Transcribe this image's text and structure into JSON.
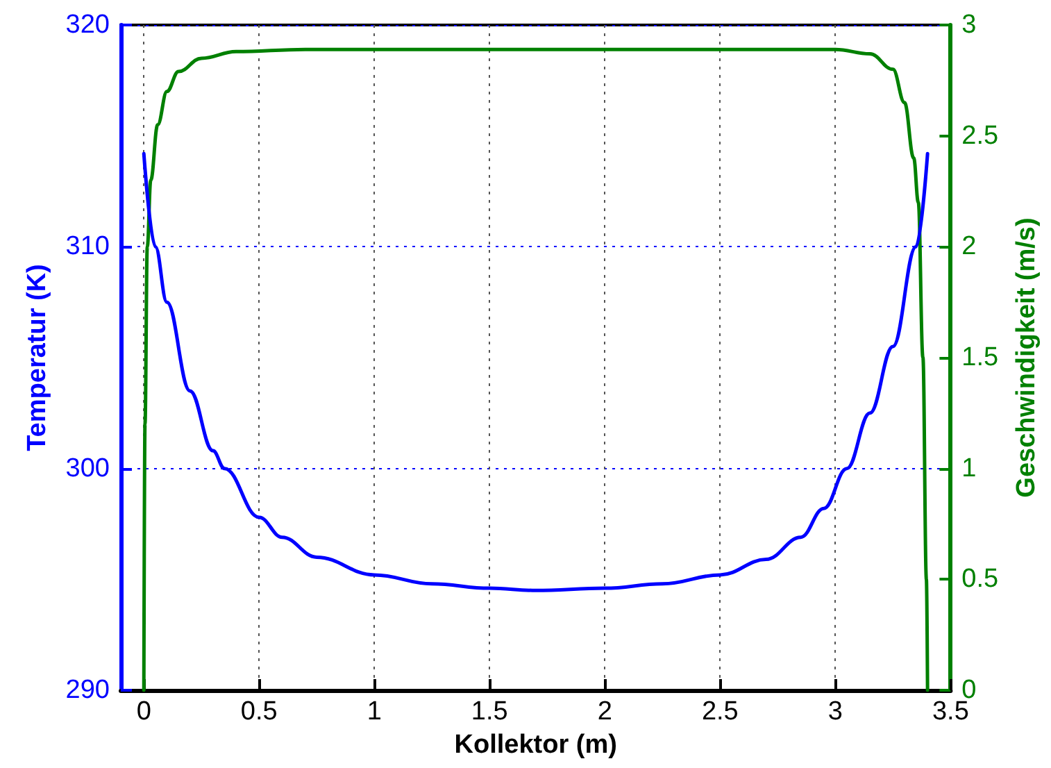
{
  "chart_data": {
    "type": "line",
    "xlabel": "Kollektor (m)",
    "ylabel": "Temperatur (K)",
    "y2label": "Geschwindigkeit (m/s)",
    "xlim": [
      -0.1,
      3.5
    ],
    "xticks": [
      0,
      0.5,
      1,
      1.5,
      2,
      2.5,
      3,
      3.5
    ],
    "ylim": [
      290,
      320
    ],
    "yticks": [
      290,
      300,
      310,
      320
    ],
    "y2lim": [
      0,
      3
    ],
    "y2ticks": [
      0,
      0.5,
      1,
      1.5,
      2,
      2.5,
      3
    ],
    "grid": true,
    "marker": "none",
    "line_style": "solid",
    "series": [
      {
        "color": "#0000ff",
        "x": [
          0,
          0.05,
          0.1,
          0.2,
          0.3,
          0.35,
          0.5,
          0.6,
          0.75,
          1,
          1.25,
          1.5,
          1.7,
          2,
          2.25,
          2.5,
          2.7,
          2.85,
          2.95,
          3.05,
          3.15,
          3.25,
          3.35,
          3.4
        ],
        "values": [
          314.2,
          310,
          307.5,
          303.5,
          300.8,
          300,
          297.8,
          296.9,
          296,
          295.2,
          294.8,
          294.6,
          294.5,
          294.6,
          294.8,
          295.2,
          295.9,
          296.9,
          298.2,
          300,
          302.5,
          305.5,
          310,
          314.2
        ]
      },
      {
        "color": "#008000",
        "axis": "y2",
        "x": [
          0,
          0.005,
          0.015,
          0.03,
          0.06,
          0.1,
          0.15,
          0.25,
          0.4,
          0.7,
          3.0,
          3.15,
          3.25,
          3.3,
          3.34,
          3.36,
          3.38,
          3.395,
          3.4
        ],
        "values": [
          0,
          1.2,
          2.0,
          2.3,
          2.55,
          2.7,
          2.79,
          2.85,
          2.88,
          2.89,
          2.89,
          2.87,
          2.8,
          2.65,
          2.4,
          2.2,
          1.5,
          0.5,
          0
        ]
      }
    ]
  }
}
